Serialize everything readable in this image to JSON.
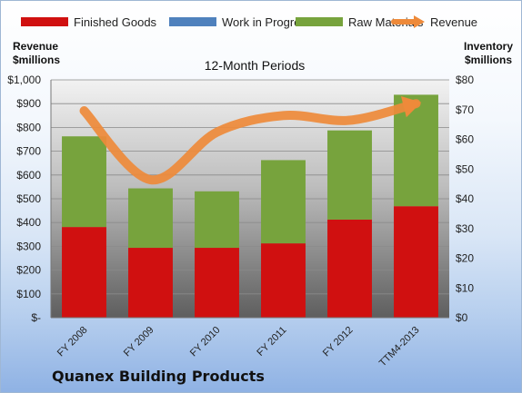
{
  "company": "Quanex Building Products",
  "chart_data": {
    "type": "bar",
    "title": "12-Month Periods",
    "ylabel_left": "Revenue\n$millions",
    "ylabel_right": "Inventory\n$millions",
    "categories": [
      "FY 2008",
      "FY 2009",
      "FY 2010",
      "FY 2011",
      "FY 2012",
      "TTM4-2013"
    ],
    "series": [
      {
        "name": "Finished Goods",
        "axis": "right",
        "stack": "inventory",
        "color": "#d01010",
        "values": [
          30.5,
          23.5,
          23.5,
          25,
          33,
          37.5
        ]
      },
      {
        "name": "Work in Progress",
        "axis": "right",
        "stack": "inventory",
        "color": "#4f81bd",
        "values": [
          0,
          0,
          0,
          0,
          0,
          0
        ]
      },
      {
        "name": "Raw Materials",
        "axis": "right",
        "stack": "inventory",
        "color": "#77a33d",
        "values": [
          30.5,
          20,
          19,
          28,
          30,
          37.5
        ]
      },
      {
        "name": "Revenue",
        "axis": "left",
        "type": "line",
        "color": "#ee8a3a",
        "values": [
          870,
          580,
          780,
          850,
          830,
          900
        ]
      }
    ],
    "ylim_left": [
      0,
      1000
    ],
    "yticks_left": [
      "$-",
      "$100",
      "$200",
      "$300",
      "$400",
      "$500",
      "$600",
      "$700",
      "$800",
      "$900",
      "$1,000"
    ],
    "ylim_right": [
      0,
      80
    ],
    "yticks_right": [
      "$0",
      "$10",
      "$20",
      "$30",
      "$40",
      "$50",
      "$60",
      "$70",
      "$80"
    ],
    "legend": "top",
    "grid": true
  }
}
